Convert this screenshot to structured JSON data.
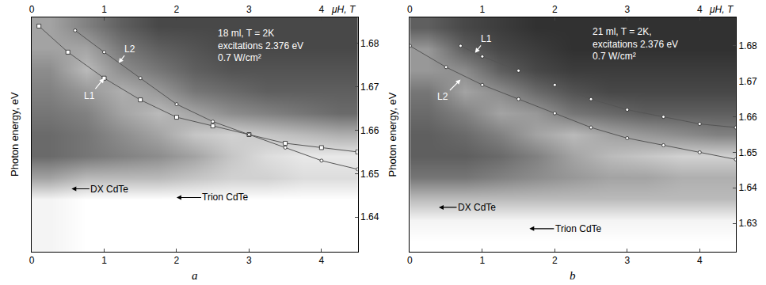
{
  "chart_data": [
    {
      "type": "heatmap",
      "xlabel": "μH, T",
      "ylabel": "Photon energy, eV",
      "panel_label": "a",
      "xlim": [
        0,
        4.5
      ],
      "xticks": [
        0,
        1,
        2,
        3,
        4
      ],
      "ylim": [
        1.632,
        1.686
      ],
      "yticks": [
        1.64,
        1.65,
        1.66,
        1.67,
        1.68
      ],
      "grid": false,
      "heatmap": {
        "x": [
          0.25,
          0.75,
          1.25,
          1.75,
          2.25,
          2.75,
          3.25,
          3.75,
          4.25
        ],
        "y": [
          1.634,
          1.639,
          1.644,
          1.649,
          1.654,
          1.659,
          1.664,
          1.669,
          1.674,
          1.679,
          1.684
        ],
        "z": [
          [
            0.95,
            1,
            1,
            1,
            1,
            1,
            1,
            1,
            1
          ],
          [
            0.95,
            1,
            1,
            1,
            1,
            1,
            1,
            1,
            1
          ],
          [
            0.95,
            1,
            1,
            1,
            1,
            1,
            1,
            1,
            1
          ],
          [
            0.6,
            0.7,
            0.7,
            0.7,
            0.75,
            0.8,
            0.8,
            0.85,
            0.85
          ],
          [
            0.35,
            0.4,
            0.45,
            0.5,
            0.6,
            0.75,
            0.85,
            0.9,
            0.9
          ],
          [
            0.35,
            0.4,
            0.5,
            0.6,
            0.75,
            0.8,
            0.75,
            0.7,
            0.65
          ],
          [
            0.4,
            0.45,
            0.6,
            0.7,
            0.6,
            0.5,
            0.45,
            0.4,
            0.35
          ],
          [
            0.45,
            0.55,
            0.65,
            0.55,
            0.4,
            0.35,
            0.3,
            0.3,
            0.3
          ],
          [
            0.5,
            0.7,
            0.5,
            0.4,
            0.3,
            0.25,
            0.25,
            0.25,
            0.25
          ],
          [
            0.6,
            0.6,
            0.4,
            0.3,
            0.25,
            0.2,
            0.2,
            0.2,
            0.2
          ],
          [
            0.6,
            0.45,
            0.3,
            0.2,
            0.2,
            0.2,
            0.2,
            0.2,
            0.2
          ]
        ],
        "zlim": [
          0,
          1
        ],
        "colors": [
          "#1a1a1a",
          "#ffffff"
        ]
      },
      "series": [
        {
          "name": "L1",
          "type": "line",
          "color": "#ffffff",
          "marker": "square",
          "line_style": "solid",
          "x": [
            0.1,
            0.5,
            1,
            1.5,
            2,
            2.5,
            3,
            3.5,
            4,
            4.5
          ],
          "values": [
            1.684,
            1.678,
            1.672,
            1.667,
            1.663,
            1.661,
            1.659,
            1.657,
            1.656,
            1.655
          ]
        },
        {
          "name": "L2",
          "type": "line",
          "color": "#ffffff",
          "marker": "circle",
          "line_style": "solid",
          "x": [
            0.6,
            1,
            1.5,
            2,
            2.5,
            3,
            3.5,
            4,
            4.5
          ],
          "values": [
            1.683,
            1.678,
            1.672,
            1.666,
            1.662,
            1.659,
            1.656,
            1.653,
            1.651
          ]
        }
      ],
      "annotations": [
        {
          "text": "L2",
          "x": 1.2,
          "y": 1.6755,
          "color": "#ffffff",
          "arrow": true
        },
        {
          "text": "L1",
          "x": 1.0,
          "y": 1.672,
          "color": "#ffffff",
          "arrow": true
        },
        {
          "text": "DX CdTe",
          "x": 0.55,
          "y": 1.6465,
          "color": "#000000",
          "arrow": true
        },
        {
          "text": "Trion CdTe",
          "x": 2.0,
          "y": 1.6445,
          "color": "#000000",
          "arrow": true
        },
        {
          "lines": [
            "18 ml, T = 2K",
            "excitations 2.376 eV",
            "0.7 W/cm²"
          ],
          "x": 2.55,
          "y": 1.684,
          "color": "#ffffff",
          "arrow": false
        }
      ]
    },
    {
      "type": "heatmap",
      "xlabel": "μH, T",
      "ylabel": "Photon energy, eV",
      "panel_label": "b",
      "xlim": [
        0,
        4.5
      ],
      "xticks": [
        0,
        1,
        2,
        3,
        4
      ],
      "ylim": [
        1.622,
        1.688
      ],
      "yticks": [
        1.63,
        1.64,
        1.65,
        1.66,
        1.67,
        1.68
      ],
      "grid": false,
      "heatmap": {
        "x": [
          0.25,
          0.75,
          1.25,
          1.75,
          2.25,
          2.75,
          3.25,
          3.75,
          4.25
        ],
        "y": [
          1.625,
          1.631,
          1.637,
          1.643,
          1.649,
          1.655,
          1.661,
          1.667,
          1.673,
          1.679,
          1.685
        ],
        "z": [
          [
            1,
            1,
            1,
            1,
            1,
            1,
            1,
            1,
            1
          ],
          [
            0.95,
            0.95,
            0.95,
            0.95,
            0.95,
            0.95,
            0.95,
            0.95,
            0.95
          ],
          [
            0.7,
            0.7,
            0.7,
            0.7,
            0.7,
            0.7,
            0.7,
            0.7,
            0.7
          ],
          [
            0.4,
            0.4,
            0.45,
            0.5,
            0.55,
            0.6,
            0.6,
            0.65,
            0.65
          ],
          [
            0.3,
            0.3,
            0.35,
            0.45,
            0.6,
            0.7,
            0.75,
            0.8,
            0.8
          ],
          [
            0.3,
            0.35,
            0.45,
            0.6,
            0.7,
            0.6,
            0.55,
            0.5,
            0.45
          ],
          [
            0.35,
            0.45,
            0.6,
            0.55,
            0.4,
            0.35,
            0.3,
            0.3,
            0.3
          ],
          [
            0.4,
            0.6,
            0.5,
            0.35,
            0.25,
            0.2,
            0.2,
            0.2,
            0.2
          ],
          [
            0.55,
            0.5,
            0.3,
            0.2,
            0.15,
            0.15,
            0.15,
            0.15,
            0.15
          ],
          [
            0.55,
            0.3,
            0.2,
            0.15,
            0.1,
            0.1,
            0.1,
            0.1,
            0.1
          ],
          [
            0.3,
            0.2,
            0.15,
            0.1,
            0.1,
            0.1,
            0.1,
            0.1,
            0.1
          ]
        ],
        "zlim": [
          0,
          1
        ],
        "colors": [
          "#1a1a1a",
          "#ffffff"
        ]
      },
      "series": [
        {
          "name": "L1",
          "type": "line",
          "color": "#ffffff",
          "marker": "circle",
          "line_style": "solid",
          "x": [
            0.7,
            1,
            1.5,
            2,
            2.5,
            3,
            3.5,
            4,
            4.5
          ],
          "values": [
            1.68,
            1.677,
            1.673,
            1.669,
            1.665,
            1.662,
            1.66,
            1.658,
            1.657
          ]
        },
        {
          "name": "L2",
          "type": "line",
          "color": "#ffffff",
          "marker": "circle",
          "line_style": "solid",
          "x": [
            0,
            0.5,
            1,
            1.5,
            2,
            2.5,
            3,
            3.5,
            4,
            4.5
          ],
          "values": [
            1.68,
            1.674,
            1.669,
            1.665,
            1.661,
            1.657,
            1.654,
            1.652,
            1.65,
            1.648
          ]
        }
      ],
      "annotations": [
        {
          "text": "L1",
          "x": 0.9,
          "y": 1.678,
          "color": "#ffffff",
          "arrow": true
        },
        {
          "text": "L2",
          "x": 0.7,
          "y": 1.6705,
          "color": "#ffffff",
          "arrow": true
        },
        {
          "text": "DX CdTe",
          "x": 0.4,
          "y": 1.6345,
          "color": "#000000",
          "arrow": true
        },
        {
          "text": "Trion CdTe",
          "x": 1.65,
          "y": 1.6285,
          "color": "#000000",
          "arrow": true
        },
        {
          "lines": [
            "21 ml, T = 2K,",
            "excitations 2.376 eV",
            "0.7 W/cm²"
          ],
          "x": 2.5,
          "y": 1.686,
          "color": "#ffffff",
          "arrow": false
        }
      ]
    }
  ]
}
